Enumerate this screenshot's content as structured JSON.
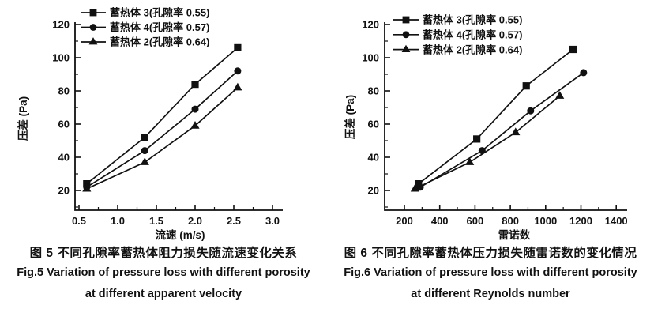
{
  "page": {
    "background": "#ffffff",
    "ink": "#111111"
  },
  "figures": [
    {
      "id": "fig5",
      "caption_zh": "图 5  不同孔隙率蓄热体阻力损失随流速变化关系",
      "caption_en_line1": "Fig.5 Variation of pressure loss with different porosity",
      "caption_en_line2": "at different apparent velocity"
    },
    {
      "id": "fig6",
      "caption_zh": "图 6  不同孔隙率蓄热体压力损失随雷诺数的变化情况",
      "caption_en_line1": "Fig.6 Variation of pressure loss with different porosity",
      "caption_en_line2": "at different Reynolds number"
    }
  ],
  "chart_data": [
    {
      "type": "line",
      "title": "",
      "xlabel": "流速 (m/s)",
      "ylabel": "压差 (Pa)",
      "xlim": [
        0.25,
        3.15
      ],
      "ylim": [
        8,
        122
      ],
      "xticks": [
        0.5,
        1.0,
        1.5,
        2.0,
        2.5,
        3.0
      ],
      "yticks": [
        20,
        40,
        60,
        80,
        100,
        120
      ],
      "grid": false,
      "legend_position": "top-left",
      "line_color": "#111111",
      "series": [
        {
          "name": "蓄热体 3(孔隙率 0.55)",
          "marker": "square",
          "x": [
            0.6,
            1.35,
            2.0,
            2.55
          ],
          "y": [
            24,
            52,
            84,
            106
          ]
        },
        {
          "name": "蓄热体 4(孔隙率 0.57)",
          "marker": "circle",
          "x": [
            0.6,
            1.35,
            2.0,
            2.55
          ],
          "y": [
            22,
            44,
            69,
            92
          ]
        },
        {
          "name": "蓄热体 2(孔隙率 0.64)",
          "marker": "triangle",
          "x": [
            0.6,
            1.35,
            2.0,
            2.55
          ],
          "y": [
            21,
            37,
            59,
            82
          ]
        }
      ]
    },
    {
      "type": "line",
      "title": "",
      "xlabel": "雷诺数",
      "ylabel": "压差 (Pa)",
      "xlim": [
        90,
        1480
      ],
      "ylim": [
        8,
        122
      ],
      "xticks": [
        200,
        400,
        600,
        800,
        1000,
        1200,
        1400
      ],
      "yticks": [
        20,
        40,
        60,
        80,
        100,
        120
      ],
      "grid": false,
      "legend_position": "top-left",
      "line_color": "#111111",
      "series": [
        {
          "name": "蓄热体 3(孔隙率 0.55)",
          "marker": "square",
          "x": [
            280,
            610,
            890,
            1155
          ],
          "y": [
            24,
            51,
            83,
            105
          ]
        },
        {
          "name": "蓄热体 4(孔隙率 0.57)",
          "marker": "circle",
          "x": [
            290,
            640,
            915,
            1215
          ],
          "y": [
            22,
            44,
            68,
            91
          ]
        },
        {
          "name": "蓄热体 2(孔隙率 0.64)",
          "marker": "triangle",
          "x": [
            260,
            570,
            830,
            1080
          ],
          "y": [
            21,
            37,
            55,
            77
          ]
        }
      ]
    }
  ]
}
